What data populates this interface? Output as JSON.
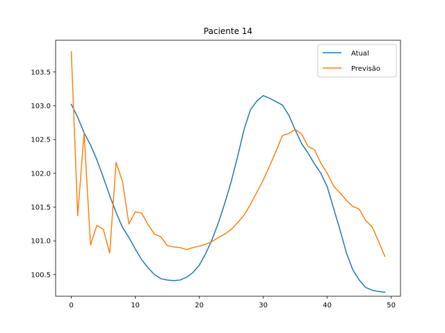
{
  "chart_data": {
    "type": "line",
    "title": "Paciente 14",
    "xlabel": "",
    "ylabel": "",
    "xlim": [
      -2.45,
      51.45
    ],
    "ylim": [
      100.18,
      103.97
    ],
    "xticks": [
      0,
      10,
      20,
      30,
      40,
      50
    ],
    "yticks": [
      100.5,
      101.0,
      101.5,
      102.0,
      102.5,
      103.0,
      103.5
    ],
    "ytick_labels": [
      "100.5",
      "101.0",
      "101.5",
      "102.0",
      "102.5",
      "103.0",
      "103.5"
    ],
    "grid": false,
    "legend_position": "top-right",
    "x": [
      0,
      1,
      2,
      3,
      4,
      5,
      6,
      7,
      8,
      9,
      10,
      11,
      12,
      13,
      14,
      15,
      16,
      17,
      18,
      19,
      20,
      21,
      22,
      23,
      24,
      25,
      26,
      27,
      28,
      29,
      30,
      31,
      32,
      33,
      34,
      35,
      36,
      37,
      38,
      39,
      40,
      41,
      42,
      43,
      44,
      45,
      46,
      47,
      48,
      49
    ],
    "series": [
      {
        "name": "Atual",
        "color": "#1f77b4",
        "values": [
          103.02,
          102.83,
          102.6,
          102.42,
          102.2,
          101.94,
          101.67,
          101.42,
          101.2,
          101.05,
          100.88,
          100.72,
          100.6,
          100.5,
          100.44,
          100.42,
          100.41,
          100.42,
          100.46,
          100.53,
          100.64,
          100.81,
          101.02,
          101.27,
          101.56,
          101.88,
          102.25,
          102.65,
          102.94,
          103.07,
          103.15,
          103.11,
          103.06,
          103.01,
          102.86,
          102.64,
          102.44,
          102.3,
          102.14,
          102.0,
          101.8,
          101.48,
          101.16,
          100.82,
          100.57,
          100.42,
          100.31,
          100.27,
          100.25,
          100.24
        ]
      },
      {
        "name": "Previsão",
        "color": "#ff7f0e",
        "values": [
          103.8,
          101.37,
          102.6,
          100.94,
          101.23,
          101.17,
          100.82,
          102.16,
          101.88,
          101.25,
          101.43,
          101.41,
          101.24,
          101.1,
          101.06,
          100.93,
          100.91,
          100.9,
          100.87,
          100.9,
          100.92,
          100.95,
          100.99,
          101.05,
          101.1,
          101.17,
          101.27,
          101.38,
          101.54,
          101.72,
          101.9,
          102.11,
          102.33,
          102.56,
          102.59,
          102.65,
          102.58,
          102.4,
          102.35,
          102.15,
          102.0,
          101.81,
          101.71,
          101.6,
          101.51,
          101.47,
          101.3,
          101.21,
          101.0,
          100.77
        ]
      }
    ]
  }
}
